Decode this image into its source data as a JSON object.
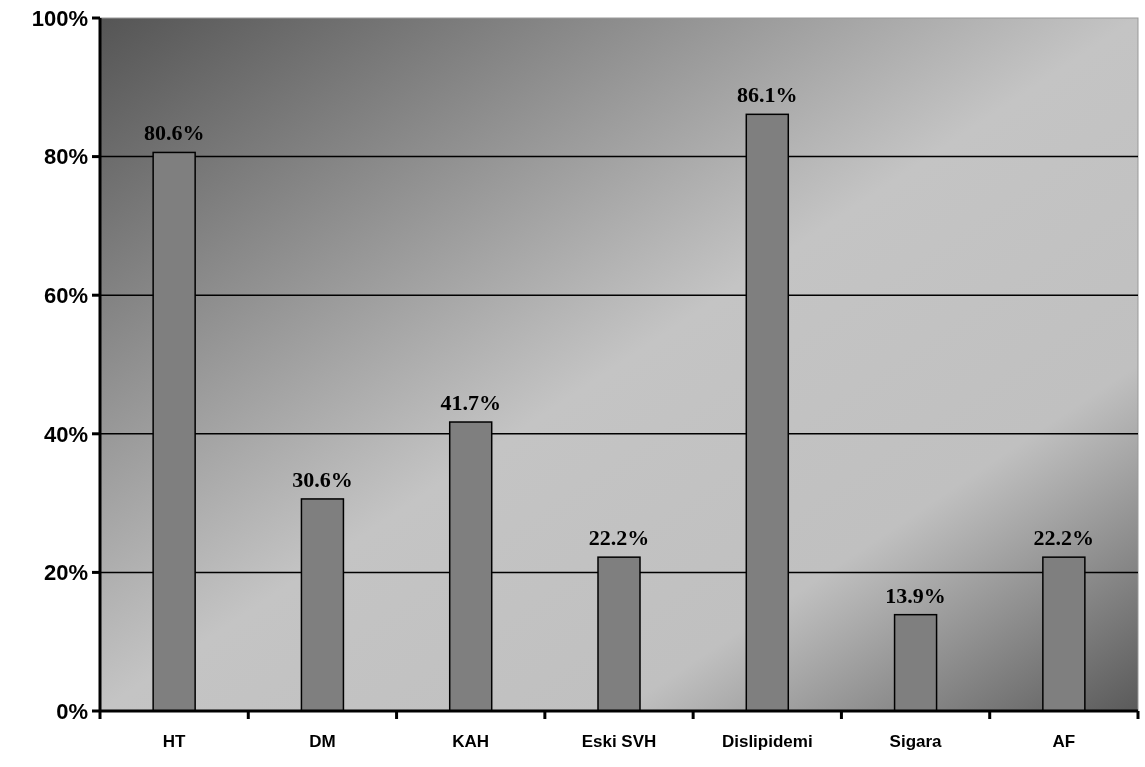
{
  "chart_data": {
    "type": "bar",
    "categories": [
      "HT",
      "DM",
      "KAH",
      "Eski SVH",
      "Dislipidemi",
      "Sigara",
      "AF"
    ],
    "values": [
      80.6,
      30.6,
      41.7,
      22.2,
      86.1,
      13.9,
      22.2
    ],
    "value_labels": [
      "80.6%",
      "30.6%",
      "41.7%",
      "22.2%",
      "86.1%",
      "13.9%",
      "22.2%"
    ],
    "color": "#7f7f7f",
    "ylim": [
      0,
      100
    ],
    "yticks": [
      {
        "value": 0,
        "label": "0%"
      },
      {
        "value": 20,
        "label": "20%"
      },
      {
        "value": 40,
        "label": "40%"
      },
      {
        "value": 60,
        "label": "60%"
      },
      {
        "value": 80,
        "label": "80%"
      },
      {
        "value": 100,
        "label": "100%"
      }
    ],
    "grid": "y"
  }
}
